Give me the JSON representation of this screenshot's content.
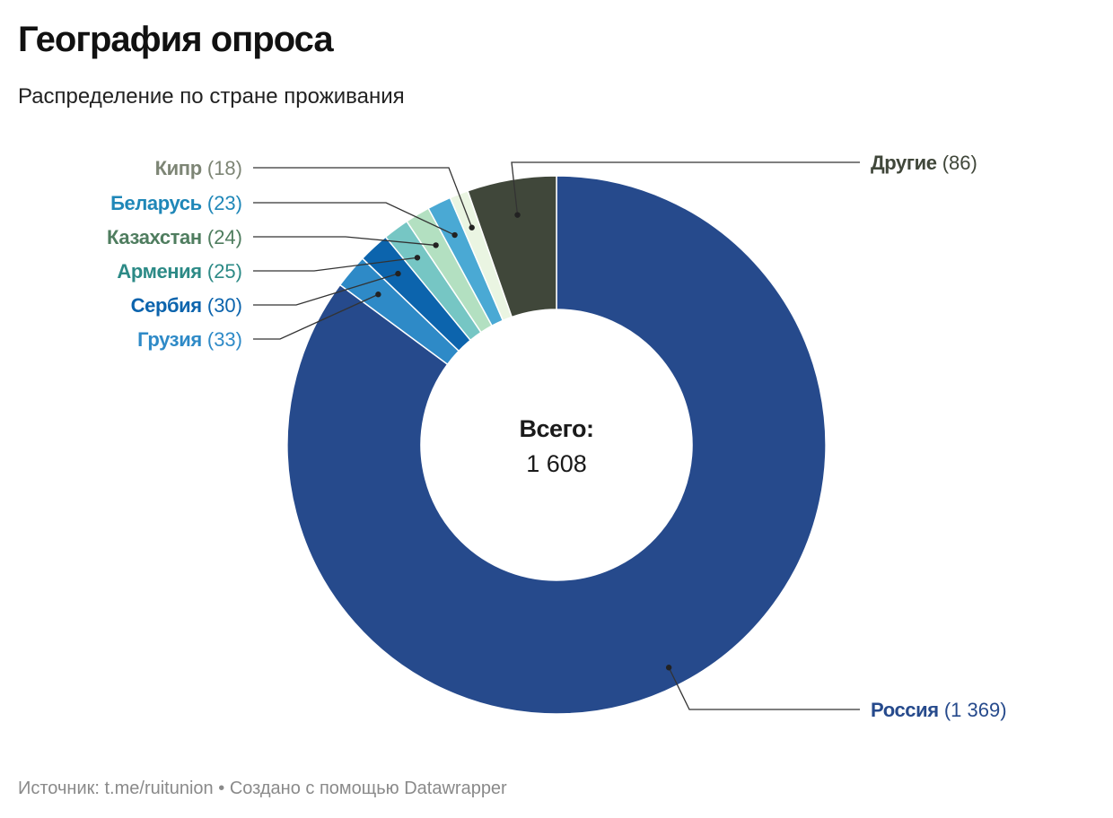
{
  "header": {
    "title": "География опроса",
    "subtitle": "Распределение по стране проживания"
  },
  "footer": {
    "source_label": "Источник:",
    "source_value": "t.me/ruitunion",
    "separator": "•",
    "credit": "Создано с помощью Datawrapper"
  },
  "chart_data": {
    "type": "pie",
    "donut": true,
    "center_label": "Всего:",
    "center_value": "1 608",
    "slices": [
      {
        "label": "Россия",
        "value": 1369,
        "value_text": "(1 369)",
        "color": "#264a8c",
        "label_color": "#264a8c"
      },
      {
        "label": "Грузия",
        "value": 33,
        "value_text": "(33)",
        "color": "#2e8ac7",
        "label_color": "#2e8ac7"
      },
      {
        "label": "Сербия",
        "value": 30,
        "value_text": "(30)",
        "color": "#0c64ad",
        "label_color": "#0c64ad"
      },
      {
        "label": "Армения",
        "value": 25,
        "value_text": "(25)",
        "color": "#76c6c4",
        "label_color": "#2c8a86"
      },
      {
        "label": "Казахстан",
        "value": 24,
        "value_text": "(24)",
        "color": "#b3e0c1",
        "label_color": "#4f7d5f"
      },
      {
        "label": "Беларусь",
        "value": 23,
        "value_text": "(23)",
        "color": "#4aa9d4",
        "label_color": "#1f87b8"
      },
      {
        "label": "Кипр",
        "value": 18,
        "value_text": "(18)",
        "color": "#eaf5e2",
        "label_color": "#7d8575"
      },
      {
        "label": "Другие",
        "value": 86,
        "value_text": "(86)",
        "color": "#40473a",
        "label_color": "#40473a"
      }
    ]
  }
}
